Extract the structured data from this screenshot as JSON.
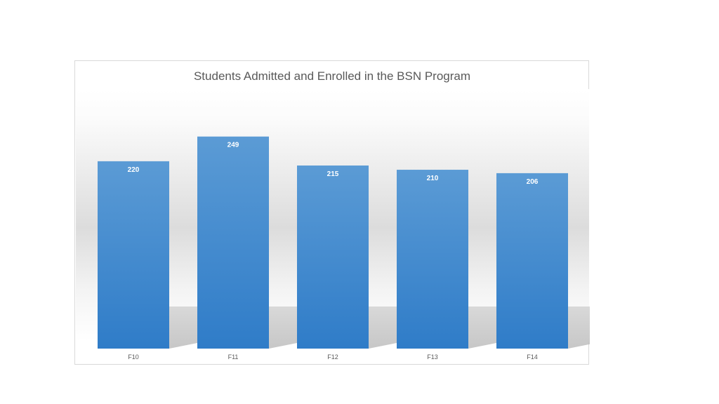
{
  "chart_data": {
    "type": "bar",
    "title": "Students Admitted and Enrolled in the BSN Program",
    "categories": [
      "F10",
      "F11",
      "F12",
      "F13",
      "F14"
    ],
    "values": [
      220,
      249,
      215,
      210,
      206
    ],
    "ylim": [
      0,
      270
    ],
    "grid": false,
    "legend": "none",
    "colors": {
      "bar_top": "#5b9bd5",
      "bar_bottom": "#2f7cc8",
      "data_label": "#ffffff",
      "axis_text": "#595959"
    }
  }
}
